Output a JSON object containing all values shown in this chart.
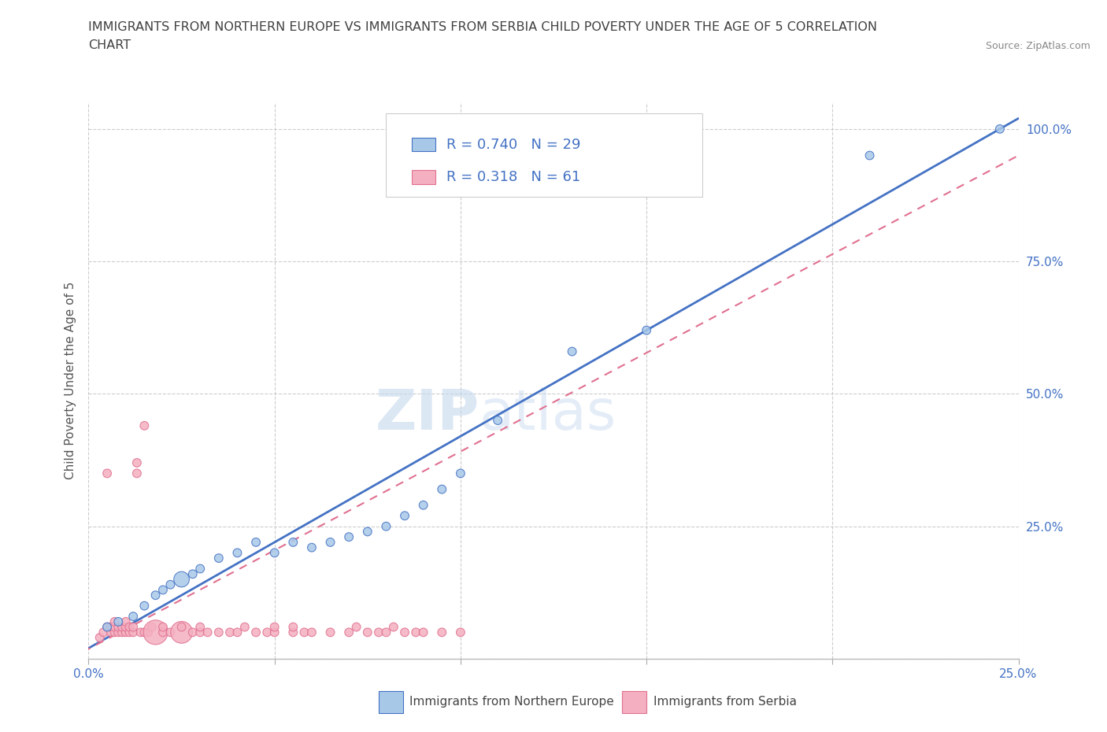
{
  "title_line1": "IMMIGRANTS FROM NORTHERN EUROPE VS IMMIGRANTS FROM SERBIA CHILD POVERTY UNDER THE AGE OF 5 CORRELATION",
  "title_line2": "CHART",
  "source_text": "Source: ZipAtlas.com",
  "ylabel": "Child Poverty Under the Age of 5",
  "xlim": [
    0.0,
    0.25
  ],
  "ylim": [
    0.0,
    1.05
  ],
  "xticks": [
    0.0,
    0.05,
    0.1,
    0.15,
    0.2,
    0.25
  ],
  "xtick_labels": [
    "0.0%",
    "",
    "",
    "",
    "",
    "25.0%"
  ],
  "yticks": [
    0.0,
    0.25,
    0.5,
    0.75,
    1.0
  ],
  "ytick_labels": [
    "",
    "25.0%",
    "50.0%",
    "75.0%",
    "100.0%"
  ],
  "r_blue": 0.74,
  "n_blue": 29,
  "r_pink": 0.318,
  "n_pink": 61,
  "legend_label_blue": "Immigrants from Northern Europe",
  "legend_label_pink": "Immigrants from Serbia",
  "color_blue": "#A8C8E8",
  "color_pink": "#F4B0C0",
  "color_blue_line": "#4472C4",
  "color_pink_line": "#E07090",
  "watermark_zip": "ZIP",
  "watermark_atlas": "atlas",
  "blue_scatter_x": [
    0.005,
    0.008,
    0.012,
    0.015,
    0.018,
    0.02,
    0.022,
    0.025,
    0.028,
    0.03,
    0.035,
    0.04,
    0.045,
    0.05,
    0.055,
    0.06,
    0.065,
    0.07,
    0.075,
    0.08,
    0.085,
    0.09,
    0.095,
    0.1,
    0.11,
    0.13,
    0.15,
    0.21,
    0.245
  ],
  "blue_scatter_y": [
    0.06,
    0.07,
    0.08,
    0.1,
    0.12,
    0.13,
    0.14,
    0.15,
    0.16,
    0.17,
    0.19,
    0.2,
    0.22,
    0.2,
    0.22,
    0.21,
    0.22,
    0.23,
    0.24,
    0.25,
    0.27,
    0.29,
    0.32,
    0.35,
    0.45,
    0.58,
    0.62,
    0.95,
    1.0
  ],
  "blue_scatter_size": [
    60,
    60,
    60,
    60,
    60,
    60,
    60,
    200,
    60,
    60,
    60,
    60,
    60,
    60,
    60,
    60,
    60,
    60,
    60,
    60,
    60,
    60,
    60,
    60,
    60,
    60,
    60,
    60,
    60
  ],
  "pink_scatter_x": [
    0.003,
    0.004,
    0.005,
    0.005,
    0.006,
    0.006,
    0.007,
    0.007,
    0.007,
    0.008,
    0.008,
    0.009,
    0.009,
    0.01,
    0.01,
    0.01,
    0.011,
    0.011,
    0.012,
    0.012,
    0.013,
    0.013,
    0.014,
    0.015,
    0.015,
    0.016,
    0.017,
    0.018,
    0.02,
    0.02,
    0.022,
    0.025,
    0.025,
    0.028,
    0.03,
    0.03,
    0.032,
    0.035,
    0.038,
    0.04,
    0.042,
    0.045,
    0.048,
    0.05,
    0.05,
    0.055,
    0.055,
    0.058,
    0.06,
    0.065,
    0.07,
    0.072,
    0.075,
    0.078,
    0.08,
    0.082,
    0.085,
    0.088,
    0.09,
    0.095,
    0.1
  ],
  "pink_scatter_y": [
    0.04,
    0.05,
    0.06,
    0.35,
    0.05,
    0.06,
    0.05,
    0.06,
    0.07,
    0.05,
    0.06,
    0.05,
    0.06,
    0.05,
    0.06,
    0.07,
    0.05,
    0.06,
    0.05,
    0.06,
    0.35,
    0.37,
    0.05,
    0.05,
    0.44,
    0.05,
    0.06,
    0.05,
    0.05,
    0.06,
    0.05,
    0.05,
    0.06,
    0.05,
    0.05,
    0.06,
    0.05,
    0.05,
    0.05,
    0.05,
    0.06,
    0.05,
    0.05,
    0.05,
    0.06,
    0.05,
    0.06,
    0.05,
    0.05,
    0.05,
    0.05,
    0.06,
    0.05,
    0.05,
    0.05,
    0.06,
    0.05,
    0.05,
    0.05,
    0.05,
    0.05
  ],
  "pink_scatter_size": [
    60,
    60,
    60,
    60,
    60,
    60,
    60,
    60,
    60,
    60,
    60,
    60,
    60,
    60,
    60,
    60,
    60,
    60,
    60,
    60,
    60,
    60,
    60,
    60,
    60,
    60,
    60,
    500,
    60,
    60,
    60,
    400,
    60,
    60,
    60,
    60,
    60,
    60,
    60,
    60,
    60,
    60,
    60,
    60,
    60,
    60,
    60,
    60,
    60,
    60,
    60,
    60,
    60,
    60,
    60,
    60,
    60,
    60,
    60,
    60,
    60
  ],
  "blue_line_x": [
    -0.005,
    0.25
  ],
  "blue_line_y": [
    0.0,
    1.02
  ],
  "pink_line_x": [
    -0.005,
    0.25
  ],
  "pink_line_y": [
    0.0,
    0.95
  ],
  "background_color": "#FFFFFF",
  "grid_color": "#CCCCCC",
  "title_color": "#404040",
  "axis_label_color": "#555555",
  "tick_color": "#4472C4",
  "legend_box_color": "#CCCCCC"
}
